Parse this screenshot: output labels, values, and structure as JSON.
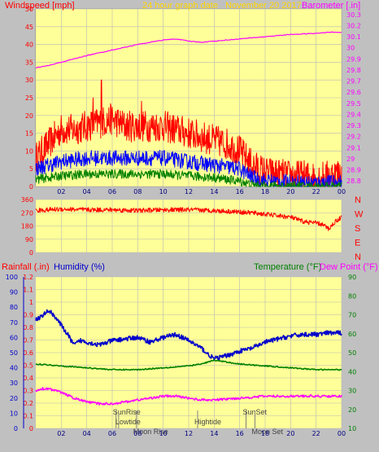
{
  "colors": {
    "background": "#c0c0c0",
    "plot_bg": "#ffff99",
    "grid": "#b8b8b8",
    "wind_gust": "#ff0000",
    "wind_avg": "#0000ff",
    "wind_low": "#008000",
    "barometer": "#ff00ff",
    "direction": "#ff0000",
    "rainfall": "#ff0000",
    "humidity": "#0000cc",
    "temperature": "#008000",
    "dew_point": "#ff00ff",
    "title": "#ffd700",
    "event_marker": "#808080"
  },
  "chart_data": [
    {
      "type": "line",
      "title": "24 hour graph date   November 20 2017",
      "left_axis_label": "Windspeed [mph]",
      "right_axis_label": "Barometer [.in]",
      "x_tick_labels": [
        "02",
        "04",
        "06",
        "08",
        "10",
        "12",
        "14",
        "16",
        "18",
        "20",
        "22",
        "00"
      ],
      "left_tick_labels": [
        "0",
        "5",
        "10",
        "15",
        "20",
        "25",
        "30",
        "35",
        "40",
        "45",
        "50"
      ],
      "right_tick_labels": [
        "28.8",
        "28.9",
        "29",
        "29.1",
        "29.2",
        "29.3",
        "29.4",
        "29.5",
        "29.6",
        "29.7",
        "29.8",
        "29.9",
        "30",
        "30.1",
        "30.2",
        "30.3"
      ],
      "xlim": [
        0,
        24
      ],
      "ylim_left": [
        0,
        50
      ],
      "ylim_right": [
        28.75,
        30.35
      ],
      "grid": true,
      "series": [
        {
          "key": "gust",
          "axis": "left",
          "color": "#ff0000",
          "x": [
            0,
            1,
            2,
            3,
            4,
            5,
            6,
            7,
            8,
            9,
            10,
            11,
            12,
            13,
            14,
            15,
            16,
            17,
            18,
            19,
            20,
            21,
            22,
            23,
            24
          ],
          "y": [
            8,
            12,
            16,
            16,
            17,
            18,
            19,
            17,
            17,
            17,
            17,
            16,
            15,
            14,
            13,
            12,
            10,
            6,
            4,
            3.5,
            3,
            3,
            2.5,
            3,
            4
          ],
          "noise": 4.5,
          "samples": 720,
          "peaks": [
            [
              5.15,
              30
            ],
            [
              4.5,
              25
            ],
            [
              8.3,
              24
            ]
          ]
        },
        {
          "key": "avg",
          "axis": "left",
          "color": "#0000ff",
          "x": [
            0,
            2,
            4,
            6,
            8,
            10,
            12,
            14,
            16,
            17,
            18,
            20,
            22,
            24
          ],
          "y": [
            5,
            7,
            8,
            8,
            8,
            8,
            7,
            6,
            5,
            2.5,
            1.5,
            1.2,
            1,
            1.2
          ],
          "noise": 2.2,
          "samples": 720
        },
        {
          "key": "low",
          "axis": "left",
          "color": "#008000",
          "x": [
            0,
            2,
            4,
            6,
            8,
            10,
            12,
            14,
            16,
            17,
            18,
            20,
            22,
            24
          ],
          "y": [
            2,
            3,
            3.5,
            3.5,
            3.5,
            3.5,
            3,
            2.5,
            1.5,
            0.5,
            0.2,
            0.1,
            0,
            0
          ],
          "noise": 1.3,
          "samples": 720
        },
        {
          "key": "barometer",
          "axis": "right",
          "color": "#ff00ff",
          "x": [
            0,
            1,
            2,
            4,
            6,
            8,
            10,
            11,
            12,
            13,
            14,
            16,
            18,
            20,
            22,
            23,
            24
          ],
          "y": [
            29.82,
            29.84,
            29.87,
            29.93,
            29.98,
            30.03,
            30.07,
            30.08,
            30.06,
            30.05,
            30.06,
            30.08,
            30.1,
            30.12,
            30.13,
            30.14,
            30.14
          ],
          "noise": 0.003,
          "samples": 300
        }
      ]
    },
    {
      "type": "line",
      "x_tick_labels": [
        "02",
        "04",
        "06",
        "08",
        "10",
        "12",
        "14",
        "16",
        "18",
        "20",
        "22",
        "00"
      ],
      "left_tick_labels": [
        "0",
        "90",
        "180",
        "270",
        "360"
      ],
      "right_labels": [
        "N",
        "W",
        "S",
        "E",
        "N"
      ],
      "xlim": [
        0,
        24
      ],
      "ylim": [
        0,
        360
      ],
      "grid": true,
      "series": [
        {
          "key": "direction",
          "color": "#ff0000",
          "x": [
            0,
            2,
            4,
            6,
            8,
            10,
            12,
            14,
            15,
            16,
            17,
            18,
            19,
            20,
            21,
            22,
            22.5,
            23,
            23.5,
            24
          ],
          "y": [
            285,
            295,
            290,
            290,
            285,
            290,
            290,
            285,
            280,
            275,
            270,
            260,
            250,
            240,
            210,
            200,
            190,
            160,
            210,
            240
          ],
          "noise": 16,
          "samples": 720
        }
      ]
    },
    {
      "type": "line",
      "left_axis_label_1": "Rainfall (.in)",
      "left_axis_label_2": "Humidity (%)",
      "right_axis_label_1": "Temperature (°F)",
      "right_axis_label_2": "Dew Point (°F)",
      "x_tick_labels": [
        "02",
        "04",
        "06",
        "08",
        "10",
        "12",
        "14",
        "16",
        "18",
        "20",
        "22",
        "00"
      ],
      "humidity_tick_labels": [
        "0",
        "10",
        "20",
        "30",
        "40",
        "50",
        "60",
        "70",
        "80",
        "90",
        "100"
      ],
      "rain_tick_labels": [
        "0",
        "0.1",
        "0.2",
        "0.3",
        "0.4",
        "0.5",
        "0.6",
        "0.7",
        "0.8",
        "0.9",
        "1",
        "1.1",
        "1.2"
      ],
      "temp_tick_labels": [
        "10",
        "20",
        "30",
        "40",
        "50",
        "60",
        "70",
        "80",
        "90"
      ],
      "xlim": [
        0,
        24
      ],
      "ylim_humidity": [
        0,
        100
      ],
      "ylim_rain": [
        0,
        1.2
      ],
      "ylim_temp": [
        10,
        90
      ],
      "grid": true,
      "series": [
        {
          "key": "humidity",
          "axis": "humidity",
          "color": "#0000cc",
          "x": [
            0,
            0.5,
            1,
            1.5,
            2,
            2.5,
            3,
            3.5,
            4,
            5,
            6,
            7,
            8,
            9,
            10,
            11,
            12,
            13,
            13.5,
            14,
            15,
            16,
            17,
            18,
            19,
            20,
            21,
            22,
            23,
            24
          ],
          "y": [
            72,
            74,
            78,
            74,
            68,
            62,
            55,
            58,
            57,
            55,
            58,
            59,
            60,
            57,
            60,
            62,
            58,
            53,
            49,
            46,
            48,
            51,
            53,
            57,
            59,
            61,
            62,
            62,
            63,
            63
          ],
          "noise": 1.5,
          "samples": 600
        },
        {
          "key": "temperature",
          "axis": "temp",
          "color": "#008000",
          "x": [
            0,
            2,
            4,
            6,
            8,
            10,
            12,
            13,
            14,
            15,
            16,
            18,
            20,
            22,
            24
          ],
          "y": [
            44,
            43,
            42,
            41,
            41,
            42,
            43,
            44,
            46,
            45,
            44,
            43,
            42,
            41,
            41
          ],
          "noise": 0.3,
          "samples": 400
        },
        {
          "key": "dewpoint",
          "axis": "temp",
          "color": "#ff00ff",
          "x": [
            0,
            0.5,
            1,
            2,
            3,
            3.5,
            4,
            5,
            6,
            7,
            8,
            9,
            10,
            11,
            12,
            13,
            14,
            16,
            18,
            20,
            22,
            24
          ],
          "y": [
            30,
            31,
            31,
            29,
            26,
            25,
            24,
            23,
            23,
            24,
            25,
            26,
            27,
            27,
            26,
            25,
            25,
            26,
            27,
            27,
            27,
            27
          ],
          "noise": 0.6,
          "samples": 400
        }
      ],
      "events": [
        {
          "label": "SunRise",
          "x": 6.3,
          "row": 0
        },
        {
          "label": "Lowtide",
          "x": 6.5,
          "row": 1
        },
        {
          "label": "Moon Rise",
          "x": 7.9,
          "row": 2
        },
        {
          "label": "Hightide",
          "x": 12.7,
          "row": 1
        },
        {
          "label": "SunSet",
          "x": 16.5,
          "row": 0
        },
        {
          "label": "Moon Set",
          "x": 17.2,
          "row": 2
        }
      ]
    }
  ]
}
